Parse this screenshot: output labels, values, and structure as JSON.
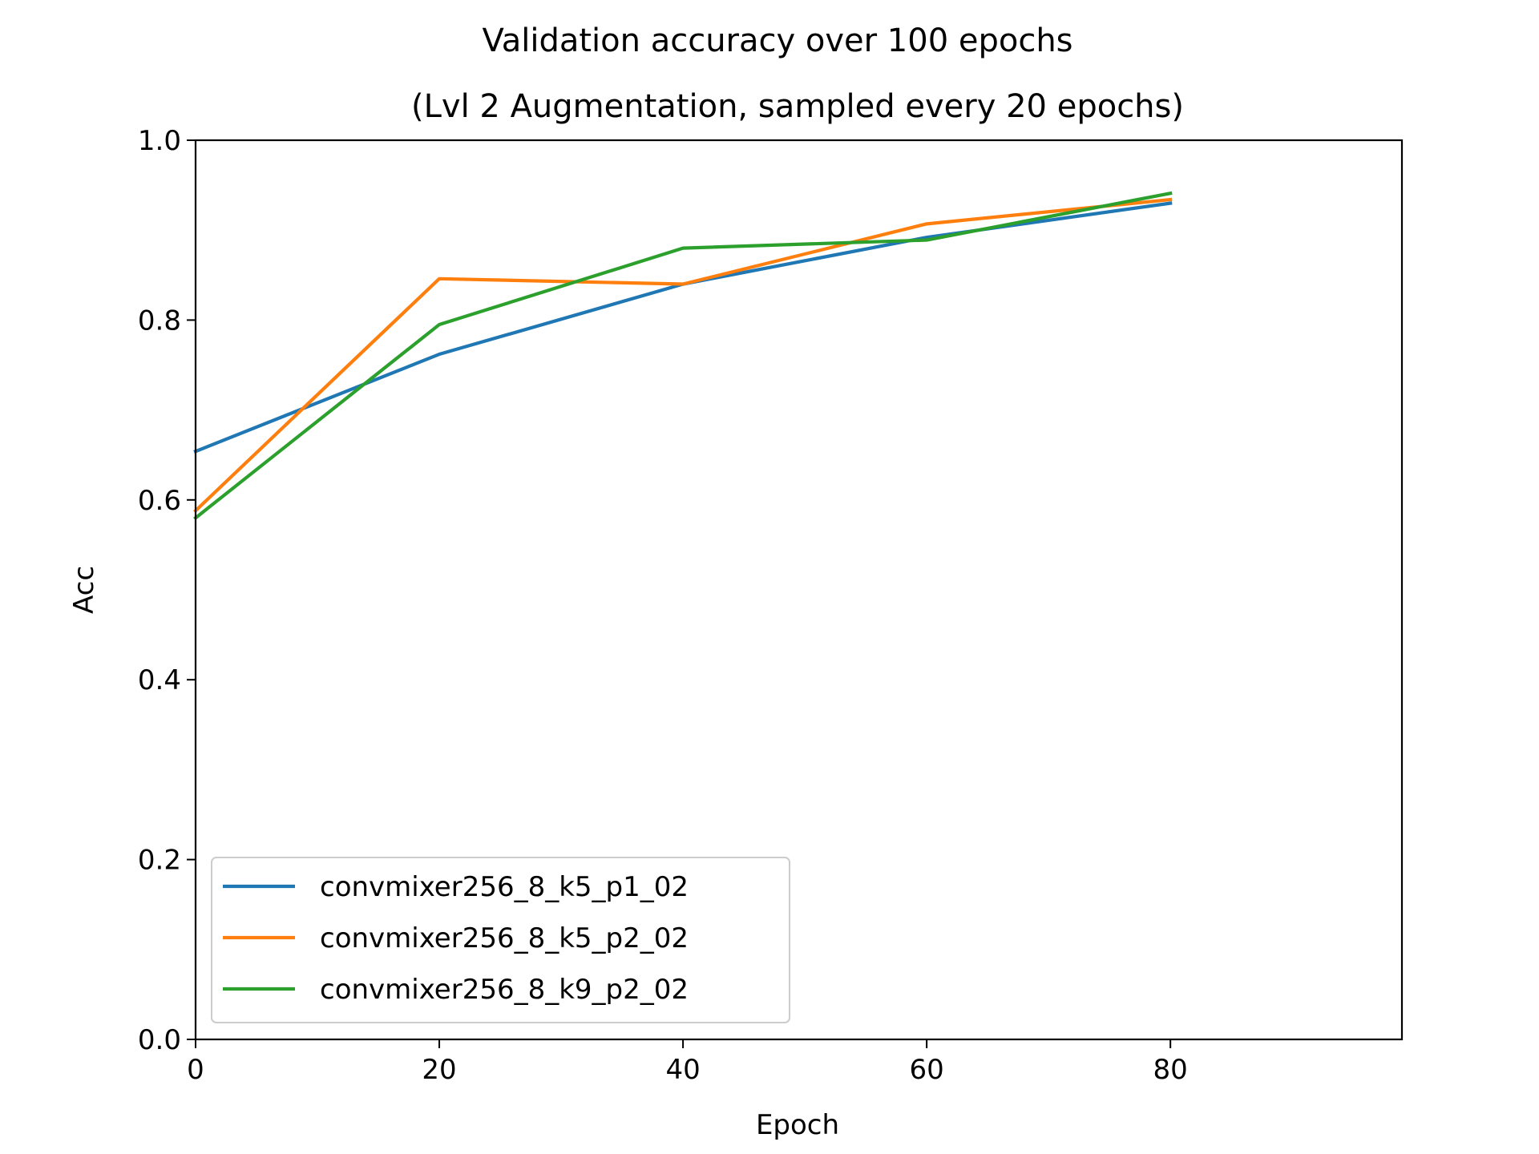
{
  "chart_data": {
    "type": "line",
    "title": "Validation accuracy over 100 epochs",
    "subtitle": "(Lvl 2 Augmentation, sampled every 20 epochs)",
    "xlabel": "Epoch",
    "ylabel": "Acc",
    "xlim": [
      0,
      99
    ],
    "ylim": [
      0.0,
      1.0
    ],
    "xticks": [
      0,
      20,
      40,
      60,
      80
    ],
    "xtick_labels": [
      "0",
      "20",
      "40",
      "60",
      "80"
    ],
    "yticks": [
      0.0,
      0.2,
      0.4,
      0.6,
      0.8,
      1.0
    ],
    "ytick_labels": [
      "0.0",
      "0.2",
      "0.4",
      "0.6",
      "0.8",
      "1.0"
    ],
    "grid": false,
    "legend_position": "lower-left",
    "x": [
      0,
      20,
      40,
      60,
      80
    ],
    "series": [
      {
        "name": "convmixer256_8_k5_p1_02",
        "color": "#1f77b4",
        "values": [
          0.654,
          0.762,
          0.84,
          0.892,
          0.93
        ]
      },
      {
        "name": "convmixer256_8_k5_p2_02",
        "color": "#ff7f0e",
        "values": [
          0.588,
          0.846,
          0.84,
          0.907,
          0.934
        ]
      },
      {
        "name": "convmixer256_8_k9_p2_02",
        "color": "#2ca02c",
        "values": [
          0.58,
          0.795,
          0.88,
          0.889,
          0.941
        ]
      }
    ]
  }
}
